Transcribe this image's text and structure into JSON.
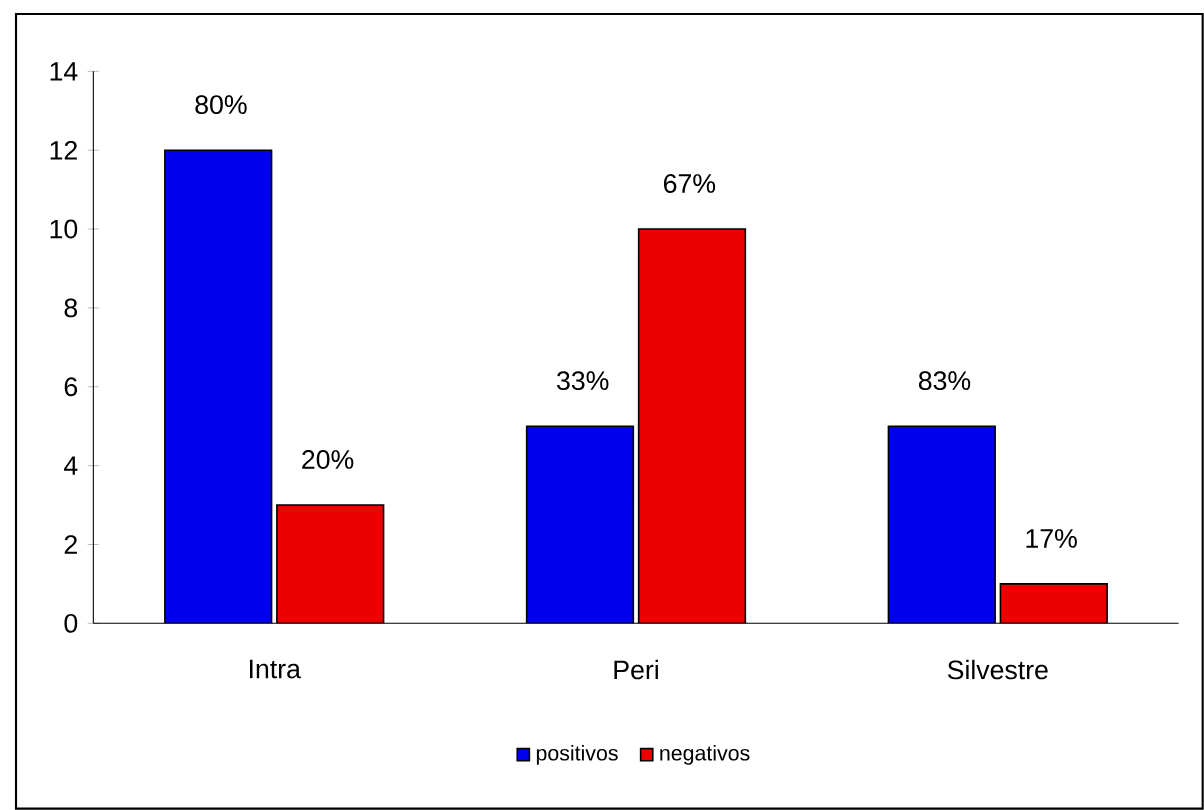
{
  "chart_data": {
    "type": "bar",
    "categories": [
      "Intra",
      "Peri",
      "Silvestre"
    ],
    "series": [
      {
        "name": "positivos",
        "color": "#0000ee",
        "values": [
          12,
          5,
          5
        ]
      },
      {
        "name": "negativos",
        "color": "#ee0000",
        "values": [
          3,
          10,
          1
        ]
      }
    ],
    "annotations": [
      {
        "text": "80%",
        "x": "Intra",
        "y": 12
      },
      {
        "text": "33%",
        "x": "Peri",
        "y": 5
      },
      {
        "text": "83%",
        "x": "Silvestre",
        "y": 5
      },
      {
        "text": "20%",
        "x": "Intra",
        "y": 3
      },
      {
        "text": "67%",
        "x": "Peri",
        "y": 10
      },
      {
        "text": "17%",
        "x": "Silvestre",
        "y": 1
      }
    ],
    "ylim": [
      0,
      14
    ],
    "yticks": [
      0,
      2,
      4,
      6,
      8,
      10,
      12,
      14
    ],
    "legend": "bottom"
  }
}
